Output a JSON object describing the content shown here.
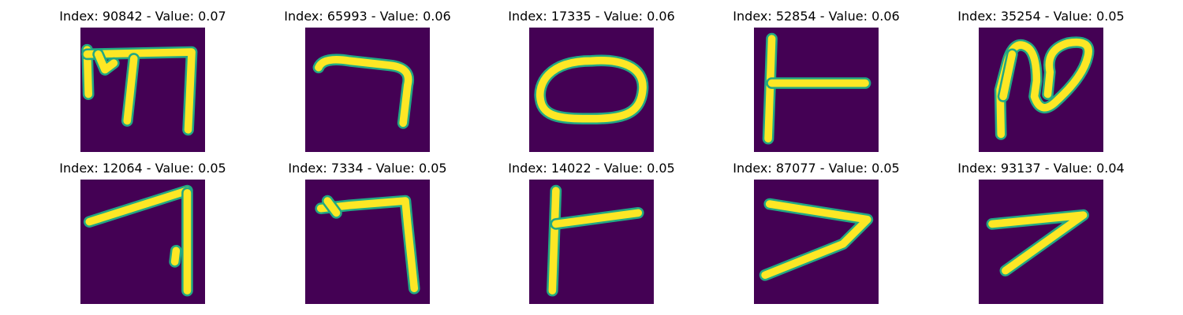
{
  "colors": {
    "background": "#440154",
    "stroke_core": "#fde725",
    "stroke_edge": "#22a884"
  },
  "panels": [
    {
      "index": "90842",
      "value": "0.07",
      "glyph": "hebrew-mem-like"
    },
    {
      "index": "65993",
      "value": "0.06",
      "glyph": "boot-shape"
    },
    {
      "index": "17335",
      "value": "0.06",
      "glyph": "oval-ring"
    },
    {
      "index": "52854",
      "value": "0.06",
      "glyph": "sideways-t"
    },
    {
      "index": "35254",
      "value": "0.05",
      "glyph": "loop-curl"
    },
    {
      "index": "12064",
      "value": "0.05",
      "glyph": "seven-tall"
    },
    {
      "index": "7334",
      "value": "0.05",
      "glyph": "seven-right-angle"
    },
    {
      "index": "14022",
      "value": "0.05",
      "glyph": "sideways-t-2"
    },
    {
      "index": "87077",
      "value": "0.05",
      "glyph": "seven-slant"
    },
    {
      "index": "93137",
      "value": "0.04",
      "glyph": "seven-small"
    }
  ]
}
